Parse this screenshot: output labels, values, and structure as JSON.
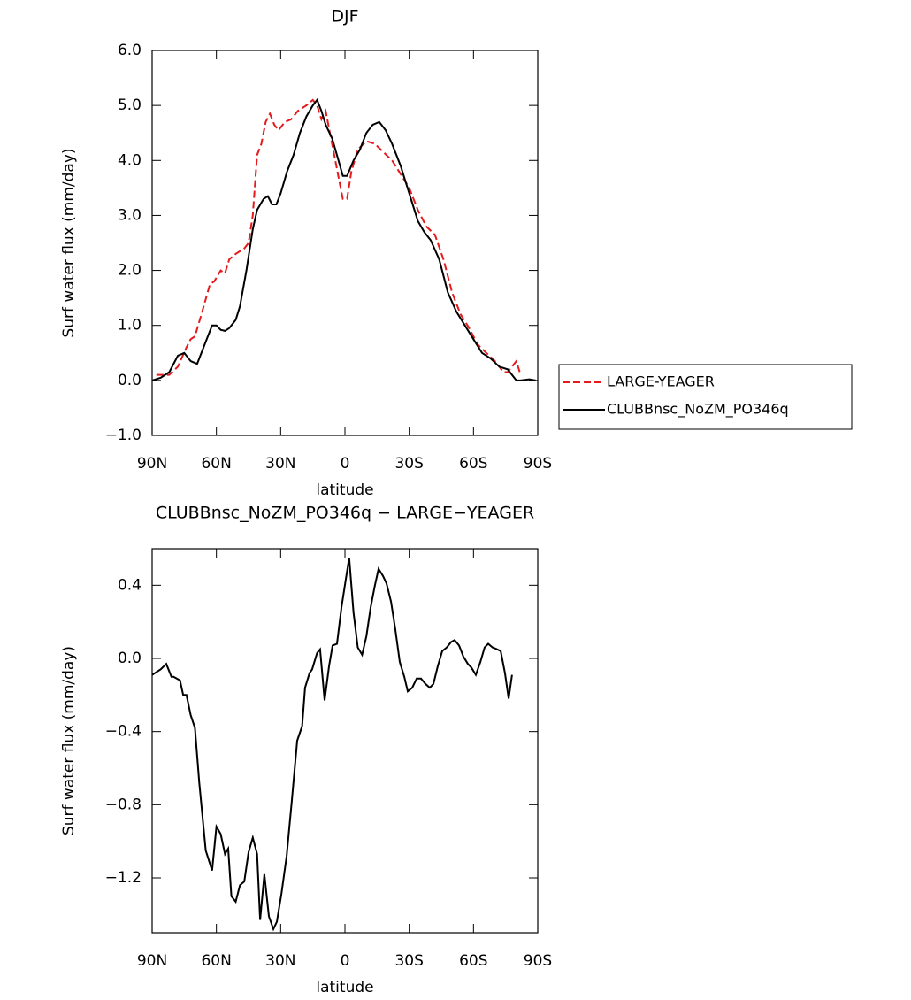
{
  "chart_data": [
    {
      "type": "line",
      "title": "DJF",
      "x_label": "latitude",
      "y_label": "Surf water flux (mm/day)",
      "xlim": [
        90,
        -90
      ],
      "ylim": [
        -1,
        6
      ],
      "xticks": [
        {
          "value": 90,
          "label": "90N"
        },
        {
          "value": 60,
          "label": "60N"
        },
        {
          "value": 30,
          "label": "30N"
        },
        0,
        {
          "value": -30,
          "label": "30S"
        },
        {
          "value": -60,
          "label": "60S"
        },
        {
          "value": -90,
          "label": "90S"
        }
      ],
      "yticks": [
        {
          "value": -1,
          "label": "−1.0"
        },
        {
          "value": 0,
          "label": "0.0"
        },
        {
          "value": 1,
          "label": "1.0"
        },
        {
          "value": 2,
          "label": "2.0"
        },
        {
          "value": 3,
          "label": "3.0"
        },
        {
          "value": 4,
          "label": "4.0"
        },
        {
          "value": 5,
          "label": "5.0"
        },
        {
          "value": 6,
          "label": "6.0"
        }
      ],
      "legend": "right",
      "series": [
        {
          "name": "LARGE-YEAGER",
          "color": "#e41a1c",
          "linestyle": "dashed",
          "x": [
            88,
            82,
            78,
            74,
            72,
            70,
            67,
            63,
            61,
            58,
            56,
            54,
            51,
            47,
            45,
            43,
            41,
            39,
            37,
            35,
            33,
            31,
            28,
            25,
            22,
            18,
            15,
            13,
            11,
            9,
            7,
            5,
            3,
            1,
            -1,
            -3,
            -6,
            -10,
            -14,
            -18,
            -22,
            -26,
            -30,
            -34,
            -38,
            -42,
            -46,
            -50,
            -54,
            -58,
            -62,
            -66,
            -70,
            -74,
            -76,
            -78,
            -80,
            -82
          ],
          "values": [
            0.1,
            0.1,
            0.25,
            0.6,
            0.75,
            0.8,
            1.2,
            1.75,
            1.8,
            2.0,
            1.95,
            2.2,
            2.3,
            2.4,
            2.5,
            3.0,
            4.1,
            4.3,
            4.7,
            4.85,
            4.65,
            4.55,
            4.7,
            4.75,
            4.9,
            5.0,
            5.1,
            5.0,
            4.75,
            4.9,
            4.5,
            4.1,
            3.7,
            3.3,
            3.3,
            3.8,
            4.2,
            4.35,
            4.3,
            4.15,
            4.0,
            3.75,
            3.5,
            3.1,
            2.8,
            2.65,
            2.2,
            1.6,
            1.2,
            0.95,
            0.65,
            0.5,
            0.35,
            0.15,
            0.15,
            0.25,
            0.35,
            0.1
          ]
        },
        {
          "name": "CLUBBnsc_NoZM_PO346q",
          "color": "#000000",
          "linestyle": "solid",
          "x": [
            90,
            86,
            82,
            78,
            75,
            72,
            69,
            66,
            62,
            60,
            58,
            56,
            54,
            51,
            49,
            46,
            43,
            41,
            38,
            36,
            34,
            32,
            30,
            27,
            24,
            21,
            18,
            15,
            13,
            11,
            9,
            6,
            3,
            1,
            -1,
            -4,
            -7,
            -10,
            -13,
            -16,
            -19,
            -22,
            -26,
            -30,
            -34,
            -37,
            -40,
            -44,
            -48,
            -52,
            -56,
            -60,
            -64,
            -68,
            -72,
            -76,
            -78,
            -80,
            -82,
            -86,
            -89
          ],
          "values": [
            0.0,
            0.05,
            0.15,
            0.45,
            0.5,
            0.35,
            0.3,
            0.6,
            1.0,
            1.0,
            0.92,
            0.9,
            0.95,
            1.1,
            1.35,
            2.0,
            2.75,
            3.1,
            3.3,
            3.35,
            3.2,
            3.2,
            3.4,
            3.8,
            4.1,
            4.5,
            4.8,
            5.0,
            5.1,
            4.9,
            4.65,
            4.4,
            4.0,
            3.72,
            3.72,
            4.0,
            4.2,
            4.5,
            4.65,
            4.7,
            4.55,
            4.3,
            3.9,
            3.4,
            2.9,
            2.7,
            2.55,
            2.2,
            1.6,
            1.25,
            1.0,
            0.75,
            0.5,
            0.4,
            0.25,
            0.2,
            0.1,
            0.0,
            0.0,
            0.02,
            0.0
          ]
        }
      ]
    },
    {
      "type": "line",
      "title": "CLUBBnsc_NoZM_PO346q − LARGE−YEAGER",
      "x_label": "latitude",
      "y_label": "Surf water flux (mm/day)",
      "xlim": [
        90,
        -90
      ],
      "ylim": [
        -1.5,
        0.6
      ],
      "xticks": [
        {
          "value": 90,
          "label": "90N"
        },
        {
          "value": 60,
          "label": "60N"
        },
        {
          "value": 30,
          "label": "30N"
        },
        0,
        {
          "value": -30,
          "label": "30S"
        },
        {
          "value": -60,
          "label": "60S"
        },
        {
          "value": -90,
          "label": "90S"
        }
      ],
      "yticks": [
        {
          "value": -1.2,
          "label": "−1.2"
        },
        {
          "value": -0.8,
          "label": "−0.8"
        },
        {
          "value": -0.4,
          "label": "−0.4"
        },
        {
          "value": 0,
          "label": "0.0"
        },
        0.4
      ],
      "color": "#000000",
      "x": [
        90,
        86,
        83.4,
        81,
        80,
        77,
        75.5,
        74,
        72,
        70,
        68,
        65,
        62,
        60,
        58,
        56,
        54.5,
        53,
        51,
        49,
        47,
        45,
        43,
        41,
        39.6,
        37.6,
        35.5,
        33.4,
        31.8,
        29.7,
        27.2,
        24.8,
        22.3,
        20,
        18.6,
        16.5,
        15.3,
        13,
        11.6,
        9.5,
        7.4,
        5.8,
        3.7,
        1.6,
        -0.5,
        -2,
        -4,
        -6,
        -8,
        -10,
        -12,
        -14,
        -15.7,
        -17.8,
        -19.4,
        -21.5,
        -23.5,
        -25.6,
        -27.7,
        -29.3,
        -31.4,
        -33.5,
        -35.5,
        -37.6,
        -39.6,
        -41.3,
        -43.4,
        -45.4,
        -47.5,
        -49.6,
        -51.2,
        -53.3,
        -55.3,
        -57.4,
        -59,
        -61.1,
        -63.2,
        -65.2,
        -66.9,
        -68.9,
        -71,
        -72.7,
        -74.7,
        -76.4,
        -78
      ],
      "values": [
        -0.09,
        -0.06,
        -0.03,
        -0.1,
        -0.1,
        -0.12,
        -0.2,
        -0.2,
        -0.31,
        -0.38,
        -0.68,
        -1.05,
        -1.16,
        -0.92,
        -0.96,
        -1.07,
        -1.04,
        -1.3,
        -1.33,
        -1.24,
        -1.22,
        -1.06,
        -0.98,
        -1.07,
        -1.43,
        -1.18,
        -1.41,
        -1.48,
        -1.44,
        -1.29,
        -1.08,
        -0.78,
        -0.45,
        -0.37,
        -0.16,
        -0.08,
        -0.06,
        0.03,
        0.05,
        -0.23,
        -0.04,
        0.07,
        0.08,
        0.28,
        0.44,
        0.55,
        0.25,
        0.06,
        0.02,
        0.12,
        0.28,
        0.4,
        0.49,
        0.45,
        0.41,
        0.31,
        0.16,
        -0.02,
        -0.1,
        -0.18,
        -0.16,
        -0.11,
        -0.11,
        -0.14,
        -0.16,
        -0.14,
        -0.04,
        0.04,
        0.06,
        0.09,
        0.1,
        0.07,
        0.01,
        -0.03,
        -0.05,
        -0.09,
        -0.02,
        0.06,
        0.08,
        0.06,
        0.05,
        0.04,
        -0.08,
        -0.22,
        -0.09
      ]
    }
  ]
}
